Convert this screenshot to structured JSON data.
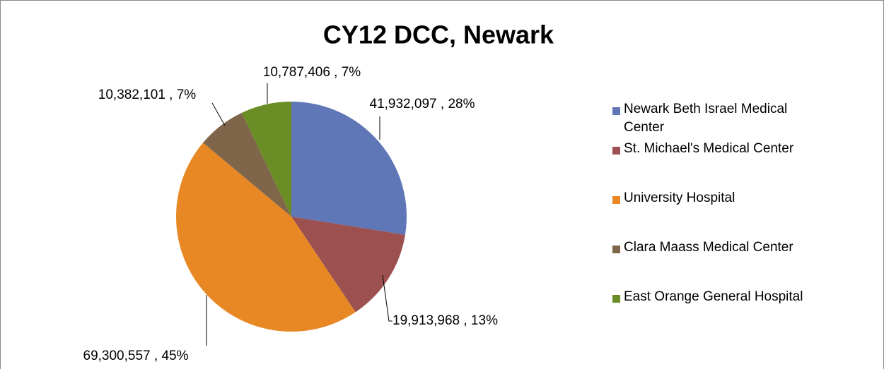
{
  "chart_data": {
    "type": "pie",
    "title": "CY12 DCC, Newark",
    "categories": [
      "Newark Beth Israel Medical Center",
      "St. Michael's Medical Center",
      "University Hospital",
      "Clara Maass Medical Center",
      "East Orange General Hospital"
    ],
    "values": [
      41932097,
      19913968,
      69300557,
      10382101,
      10787406
    ],
    "value_labels": [
      "41,932,097 , 28%",
      "19,913,968 , 13%",
      "69,300,557 , 45%",
      "10,382,101 , 7%",
      "10,787,406 , 7%"
    ],
    "colors": [
      "#5f77b6",
      "#9c5050",
      "#e78825",
      "#7f6549",
      "#6b8d25"
    ],
    "legend": "right"
  }
}
